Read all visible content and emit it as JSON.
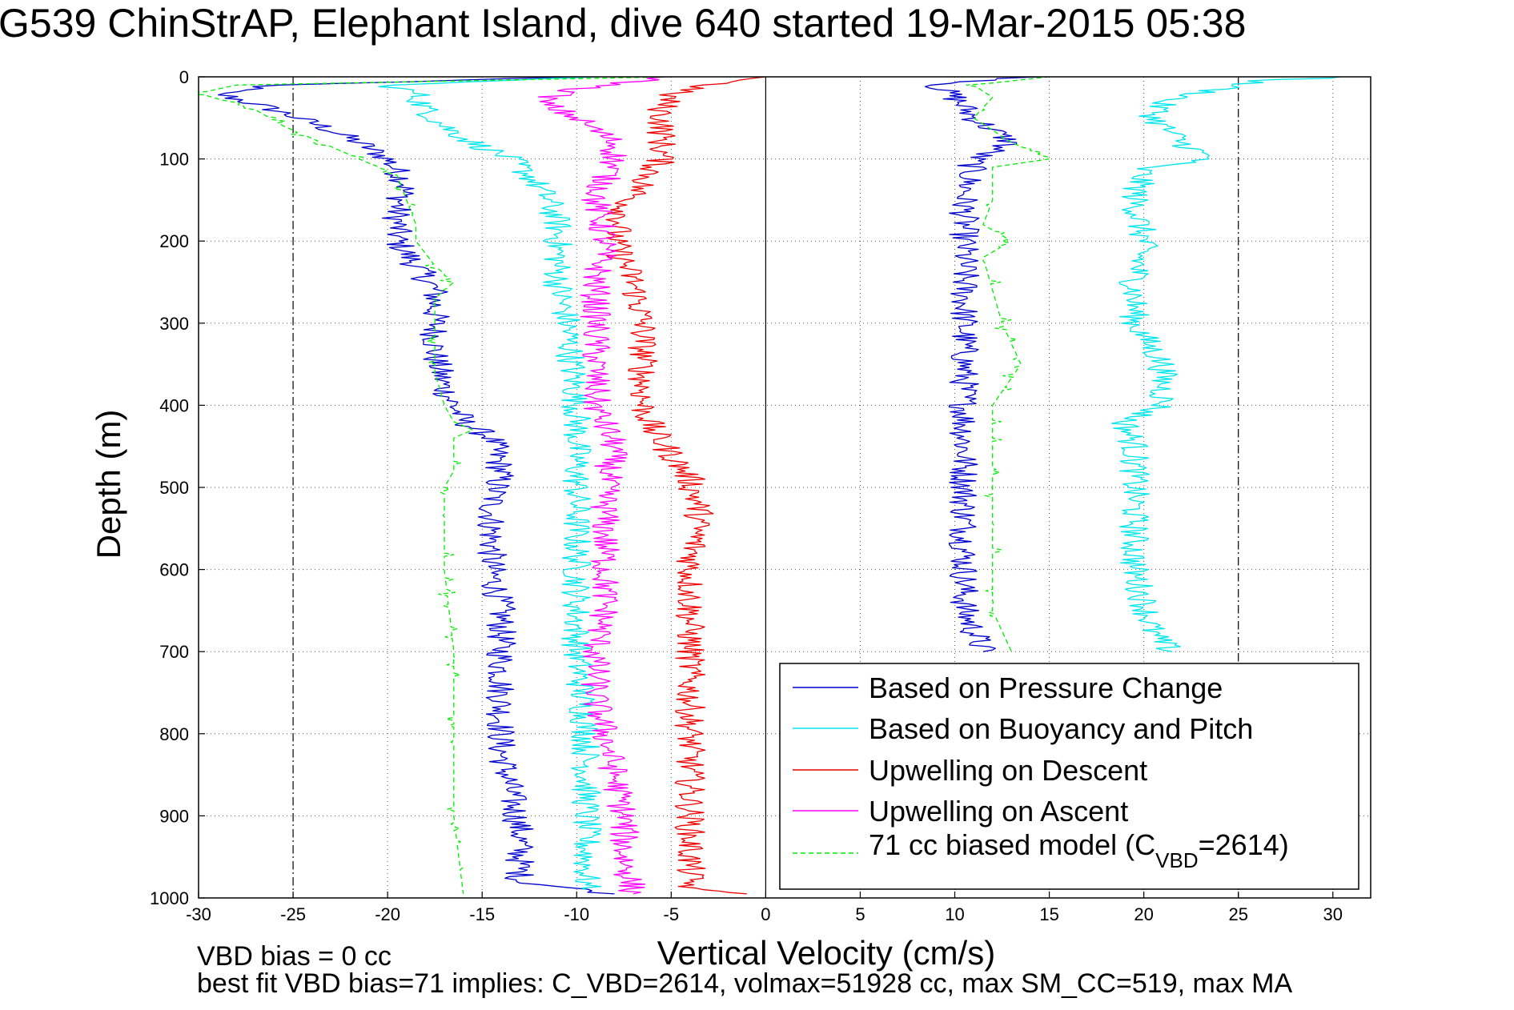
{
  "colors": {
    "pressure": "#0000cd",
    "buoyancy": "#00e5ee",
    "descent": "#ee0000",
    "ascent": "#ff00ff",
    "model": "#00ee00",
    "grid": "#555555"
  },
  "footer": {
    "line1": "VBD bias = 0 cc",
    "line2": "best fit VBD bias=71 implies: C_VBD=2614, volmax=51928 cc, max SM_CC=519, max MA"
  },
  "chart_data": {
    "type": "line",
    "title": "G539 ChinStrAP, Elephant Island, dive 640 started 19-Mar-2015 05:38",
    "xlabel": "Vertical Velocity (cm/s)",
    "ylabel": "Depth (m)",
    "xlim": [
      -30,
      32
    ],
    "ylim": [
      0,
      1000
    ],
    "y_reversed": true,
    "grid": true,
    "legend_position": "bottom-right",
    "x_ticks": [
      -30,
      -25,
      -20,
      -15,
      -10,
      -5,
      0,
      5,
      10,
      15,
      20,
      25,
      30
    ],
    "x_tick_labels": [
      "-30",
      "-25",
      "-20",
      "-15",
      "-10",
      "-5",
      "0",
      "5",
      "10",
      "15",
      "20",
      "25",
      "30"
    ],
    "y_ticks": [
      0,
      100,
      200,
      300,
      400,
      500,
      600,
      700,
      800,
      900,
      1000
    ],
    "y_tick_labels": [
      "0",
      "100",
      "200",
      "300",
      "400",
      "500",
      "600",
      "700",
      "800",
      "900",
      "1000"
    ],
    "vlines": [
      -25,
      0,
      25
    ],
    "legend": {
      "pressure": "Based on Pressure Change",
      "buoyancy": "Based on Buoyancy and Pitch",
      "descent": "Upwelling on Descent",
      "ascent": "Upwelling on Ascent",
      "model_main": "71 cc biased model (C",
      "model_sub": "VBD",
      "model_tail": "=2614)"
    },
    "series": [
      {
        "key": "pressure_descent",
        "legend_key": "pressure",
        "depth": [
          0,
          10,
          20,
          40,
          60,
          80,
          100,
          130,
          160,
          200,
          230,
          260,
          300,
          340,
          380,
          420,
          440,
          480,
          520,
          560,
          600,
          650,
          700,
          760,
          820,
          870,
          920,
          980,
          995
        ],
        "velocity": [
          -10,
          -26,
          -29,
          -26,
          -23.5,
          -21.5,
          -20,
          -19,
          -19.5,
          -19.5,
          -18.5,
          -17.5,
          -17.5,
          -17.5,
          -17,
          -16,
          -14.5,
          -14,
          -14.5,
          -14.5,
          -14.5,
          -14,
          -14,
          -14,
          -14,
          -13.5,
          -13,
          -13,
          -8
        ]
      },
      {
        "key": "pressure_ascent",
        "legend_key": "pressure",
        "depth": [
          0,
          10,
          25,
          50,
          80,
          100,
          150,
          200,
          250,
          300,
          350,
          400,
          450,
          500,
          550,
          600,
          650,
          700
        ],
        "velocity": [
          14,
          9,
          10,
          11,
          13,
          11,
          10.5,
          10.5,
          10.5,
          10.5,
          10.5,
          10.5,
          10.5,
          10.5,
          10.5,
          10.5,
          10.5,
          11.5
        ]
      },
      {
        "key": "buoyancy_descent",
        "legend_key": "buoyancy",
        "depth": [
          0,
          10,
          20,
          40,
          60,
          80,
          100,
          120,
          150,
          180,
          200,
          230,
          250,
          300,
          400,
          500,
          600,
          700,
          800,
          900,
          990
        ],
        "velocity": [
          -9,
          -20,
          -18.5,
          -18,
          -17,
          -15.5,
          -13.5,
          -12.5,
          -11.5,
          -11,
          -11,
          -11,
          -11,
          -10.5,
          -10,
          -10,
          -10,
          -10,
          -9.5,
          -9.5,
          -9.5
        ]
      },
      {
        "key": "buoyancy_ascent",
        "legend_key": "buoyancy",
        "depth": [
          0,
          5,
          15,
          30,
          50,
          80,
          100,
          110,
          150,
          200,
          250,
          300,
          350,
          400,
          420,
          450,
          500,
          600,
          680,
          700
        ],
        "velocity": [
          31,
          26,
          24,
          21,
          20.5,
          22,
          23.5,
          20,
          19.5,
          20,
          19.5,
          19.5,
          21,
          21,
          19,
          19.5,
          19.5,
          19.5,
          20.5,
          21.5
        ]
      },
      {
        "key": "upwelling_descent",
        "legend_key": "descent",
        "depth": [
          0,
          10,
          20,
          40,
          60,
          80,
          100,
          130,
          160,
          200,
          250,
          300,
          350,
          400,
          430,
          460,
          490,
          530,
          600,
          700,
          800,
          880,
          950,
          990,
          995
        ],
        "velocity": [
          0,
          -3,
          -5,
          -5.5,
          -5.5,
          -5.5,
          -5.5,
          -6.5,
          -7.5,
          -8,
          -7,
          -6.5,
          -6.5,
          -6.5,
          -6,
          -5,
          -4,
          -3.5,
          -4,
          -4,
          -4,
          -4,
          -4,
          -4,
          -1
        ]
      },
      {
        "key": "upwelling_ascent",
        "legend_key": "ascent",
        "depth": [
          0,
          15,
          30,
          50,
          80,
          100,
          150,
          200,
          250,
          300,
          350,
          400,
          450,
          500,
          550,
          600,
          650,
          700,
          760,
          800,
          850,
          900,
          950,
          995
        ],
        "velocity": [
          -5,
          -10,
          -12,
          -10,
          -8,
          -8,
          -9,
          -8.5,
          -9,
          -9,
          -9,
          -9,
          -8,
          -8.5,
          -8.5,
          -8.5,
          -8.5,
          -9,
          -9,
          -8.5,
          -8,
          -7.5,
          -7.5,
          -7
        ]
      },
      {
        "key": "model_descent",
        "legend_key": "model",
        "depth": [
          0,
          10,
          20,
          40,
          60,
          80,
          100,
          120,
          150,
          180,
          200,
          230,
          250,
          270,
          300,
          330,
          360,
          400,
          420,
          430,
          440,
          480,
          500,
          600,
          700,
          800,
          900,
          995
        ],
        "velocity": [
          -5,
          -28,
          -30,
          -27,
          -25.5,
          -23.5,
          -21.5,
          -19.5,
          -19,
          -18.5,
          -18.5,
          -17.5,
          -16.5,
          -17.5,
          -17.5,
          -17.5,
          -17.5,
          -17,
          -16.5,
          -15.5,
          -16.5,
          -16.5,
          -17,
          -17,
          -16.5,
          -16.5,
          -16.5,
          -16
        ]
      },
      {
        "key": "model_ascent",
        "legend_key": "model",
        "depth": [
          0,
          10,
          25,
          50,
          80,
          100,
          110,
          150,
          180,
          200,
          220,
          300,
          350,
          400,
          450,
          500,
          600,
          650,
          700
        ],
        "velocity": [
          15,
          11,
          12,
          11,
          13,
          15,
          12,
          12,
          11.5,
          13,
          11.5,
          12.5,
          13.5,
          12,
          12,
          12,
          12,
          12,
          13
        ]
      }
    ]
  }
}
